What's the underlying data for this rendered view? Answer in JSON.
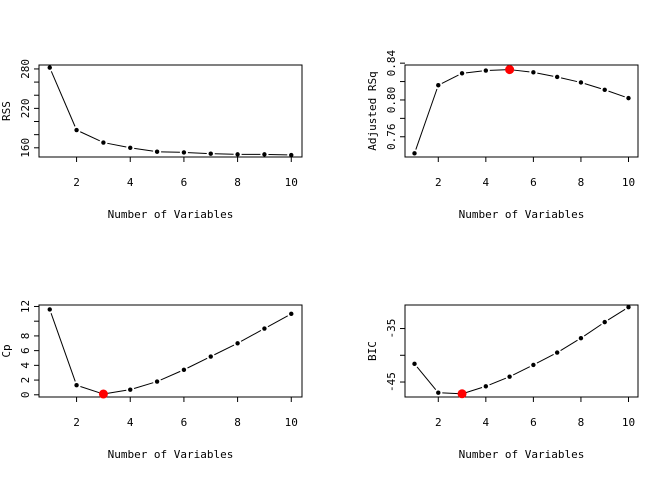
{
  "chart_data": [
    {
      "type": "line",
      "panel": "top-left",
      "xlabel": "Number of Variables",
      "ylabel": "RSS",
      "x": [
        1,
        2,
        3,
        4,
        5,
        6,
        7,
        8,
        9,
        10
      ],
      "y": [
        282,
        187,
        168,
        160,
        154,
        153,
        151,
        150,
        150,
        149
      ],
      "xlim": [
        0.6,
        10.4
      ],
      "ylim": [
        146,
        286
      ],
      "xticks": [
        2,
        4,
        6,
        8,
        10
      ],
      "yticks": [
        160,
        180,
        200,
        220,
        240,
        260,
        280
      ],
      "yticklabels": [
        "160",
        "",
        "",
        "220",
        "",
        "",
        "280"
      ],
      "highlight_x": null
    },
    {
      "type": "line",
      "panel": "top-right",
      "xlabel": "Number of Variables",
      "ylabel": "Adjusted RSq",
      "x": [
        1,
        2,
        3,
        4,
        5,
        6,
        7,
        8,
        9,
        10
      ],
      "y": [
        0.742,
        0.816,
        0.829,
        0.832,
        0.833,
        0.83,
        0.825,
        0.819,
        0.811,
        0.802
      ],
      "xlim": [
        0.6,
        10.4
      ],
      "ylim": [
        0.738,
        0.838
      ],
      "xticks": [
        2,
        4,
        6,
        8,
        10
      ],
      "yticks": [
        0.76,
        0.78,
        0.8,
        0.82,
        0.84
      ],
      "yticklabels": [
        "0.76",
        "",
        "0.80",
        "",
        "0.84"
      ],
      "highlight_x": 5
    },
    {
      "type": "line",
      "panel": "bottom-left",
      "xlabel": "Number of Variables",
      "ylabel": "Cp",
      "x": [
        1,
        2,
        3,
        4,
        5,
        6,
        7,
        8,
        9,
        10
      ],
      "y": [
        11.6,
        1.3,
        0.1,
        0.7,
        1.8,
        3.4,
        5.2,
        7.0,
        9.0,
        11.0
      ],
      "xlim": [
        0.6,
        10.4
      ],
      "ylim": [
        -0.3,
        12.2
      ],
      "xticks": [
        2,
        4,
        6,
        8,
        10
      ],
      "yticks": [
        0,
        2,
        4,
        6,
        8,
        10,
        12
      ],
      "yticklabels": [
        "0",
        "2",
        "4",
        "6",
        "8",
        "",
        "12"
      ],
      "highlight_x": 3
    },
    {
      "type": "line",
      "panel": "bottom-right",
      "xlabel": "Number of Variables",
      "ylabel": "BIC",
      "x": [
        1,
        2,
        3,
        4,
        5,
        6,
        7,
        8,
        9,
        10
      ],
      "y": [
        -41.6,
        -47.0,
        -47.2,
        -45.8,
        -44.0,
        -41.8,
        -39.5,
        -36.8,
        -33.8,
        -31.0
      ],
      "xlim": [
        0.6,
        10.4
      ],
      "ylim": [
        -47.8,
        -30.6
      ],
      "xticks": [
        2,
        4,
        6,
        8,
        10
      ],
      "yticks": [
        -45,
        -40,
        -35
      ],
      "yticklabels": [
        "-45",
        "",
        "-35"
      ],
      "highlight_x": 3
    }
  ]
}
